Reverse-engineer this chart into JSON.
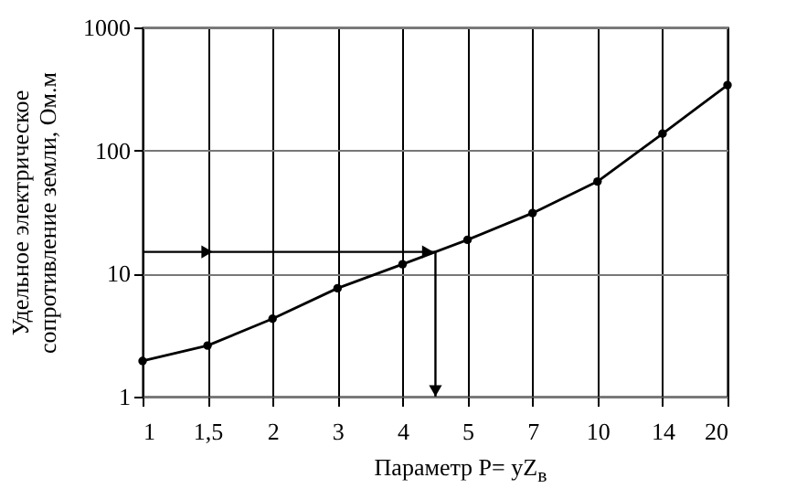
{
  "chart_data": {
    "type": "line",
    "xlabel": "Параметр P= yZ$_{в}$",
    "ylabel": "Удельное электрическое сопротивление земли, Ом.м",
    "categories": [
      "1",
      "1,5",
      "2",
      "3",
      "4",
      "5",
      "7",
      "10",
      "14",
      "20"
    ],
    "series": [
      {
        "color": "#000000",
        "values": [
          1.95,
          2.6,
          4.3,
          7.6,
          11.9,
          18.8,
          31,
          56,
          137,
          340
        ]
      }
    ],
    "log": "y",
    "ylim": [
      1,
      1000
    ],
    "yticks": [
      1,
      10,
      100,
      1000
    ],
    "grid": true,
    "marker": "circle",
    "line_style": "solid",
    "ref_lines": [
      {
        "axis": "y",
        "value": 15
      }
    ]
  }
}
